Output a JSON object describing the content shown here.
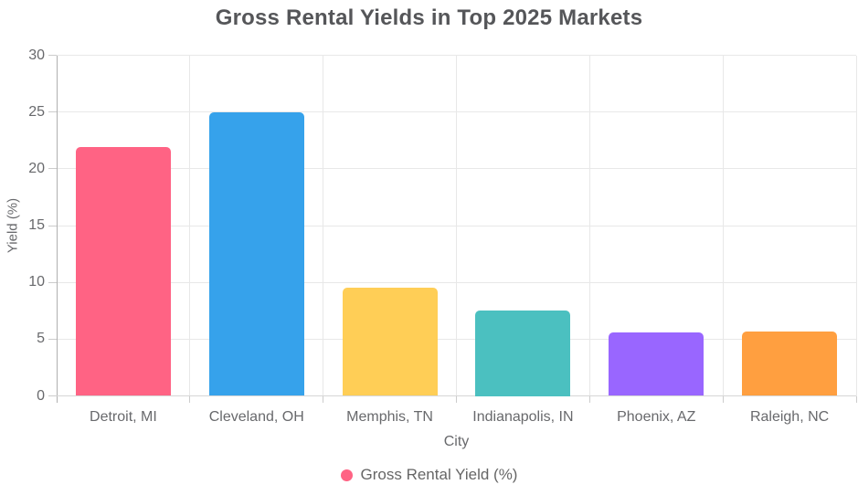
{
  "chart": {
    "title": "Gross Rental Yields in Top 2025 Markets",
    "y_axis_title": "Yield (%)",
    "x_axis_title": "City",
    "legend_label": "Gross Rental Yield (%)",
    "legend_marker_color": "#FF6384"
  },
  "chart_data": {
    "type": "bar",
    "title": "Gross Rental Yields in Top 2025 Markets",
    "categories": [
      "Detroit, MI",
      "Cleveland, OH",
      "Memphis, TN",
      "Indianapolis, IN",
      "Phoenix, AZ",
      "Raleigh, NC"
    ],
    "series": [
      {
        "name": "Gross Rental Yield (%)",
        "values": [
          21.9,
          25.0,
          9.5,
          7.5,
          5.6,
          5.7
        ]
      }
    ],
    "bar_colors": [
      "#FF6384",
      "#36A2EB",
      "#FFCE56",
      "#4BC0C0",
      "#9966FF",
      "#FF9F40"
    ],
    "xlabel": "City",
    "ylabel": "Yield (%)",
    "ylim": [
      0,
      30
    ],
    "yticks": [
      0,
      5,
      10,
      15,
      20,
      25,
      30
    ],
    "grid": true,
    "legend_position": "bottom",
    "background": "#ffffff"
  }
}
